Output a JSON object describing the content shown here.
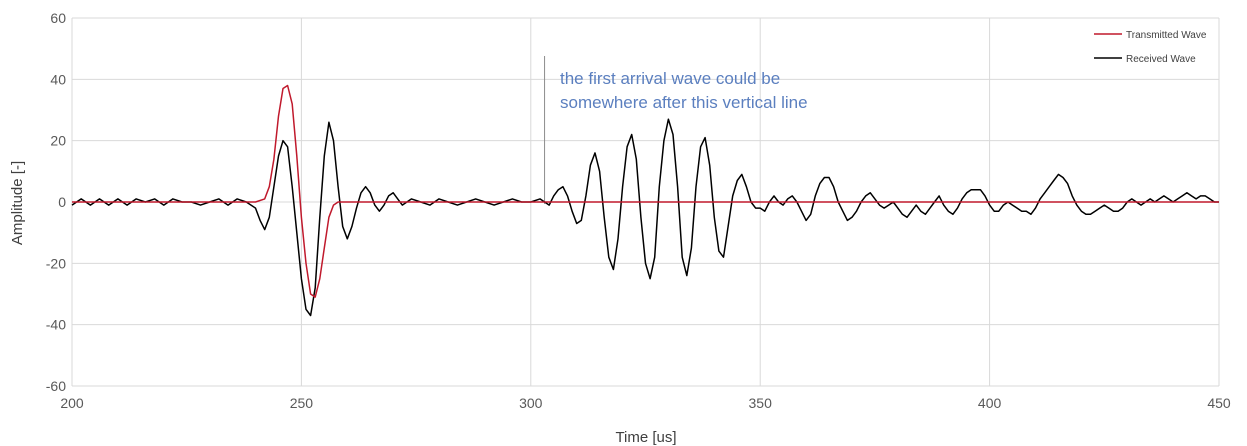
{
  "chart_data": {
    "type": "line",
    "xlabel": "Time [us]",
    "ylabel": "Amplitude [-]",
    "xlim": [
      200,
      450
    ],
    "ylim": [
      -60,
      60
    ],
    "xticks": [
      200,
      250,
      300,
      350,
      400,
      450
    ],
    "yticks": [
      -60,
      -40,
      -20,
      0,
      20,
      40,
      60
    ],
    "grid": true,
    "legend_position": "top-right",
    "annotation": {
      "lines": [
        "the first arrival wave could be",
        "somewhere after this vertical line"
      ],
      "marker_x": 303
    },
    "series": [
      {
        "name": "Transmitted Wave",
        "color": "#c0192c",
        "x": [
          200,
          240,
          242,
          243,
          244,
          245,
          246,
          247,
          248,
          249,
          250,
          251,
          252,
          253,
          254,
          255,
          256,
          257,
          258,
          260,
          450
        ],
        "y": [
          0,
          0,
          1,
          5,
          14,
          28,
          37,
          38,
          32,
          15,
          -5,
          -20,
          -30,
          -31,
          -25,
          -15,
          -5,
          -1,
          0,
          0,
          0
        ]
      },
      {
        "name": "Received Wave",
        "color": "#000000",
        "x": [
          200,
          202,
          204,
          206,
          208,
          210,
          212,
          214,
          216,
          218,
          220,
          222,
          224,
          226,
          228,
          230,
          232,
          234,
          236,
          238,
          240,
          241,
          242,
          243,
          244,
          245,
          246,
          247,
          248,
          249,
          250,
          251,
          252,
          253,
          254,
          255,
          256,
          257,
          258,
          259,
          260,
          261,
          262,
          263,
          264,
          265,
          266,
          267,
          268,
          269,
          270,
          271,
          272,
          273,
          274,
          276,
          278,
          280,
          282,
          284,
          286,
          288,
          290,
          292,
          294,
          296,
          298,
          300,
          302,
          304,
          305,
          306,
          307,
          308,
          309,
          310,
          311,
          312,
          313,
          314,
          315,
          316,
          317,
          318,
          319,
          320,
          321,
          322,
          323,
          324,
          325,
          326,
          327,
          328,
          329,
          330,
          331,
          332,
          333,
          334,
          335,
          336,
          337,
          338,
          339,
          340,
          341,
          342,
          343,
          344,
          345,
          346,
          347,
          348,
          349,
          350,
          351,
          352,
          353,
          354,
          355,
          356,
          357,
          358,
          359,
          360,
          361,
          362,
          363,
          364,
          365,
          366,
          367,
          368,
          369,
          370,
          371,
          372,
          373,
          374,
          375,
          376,
          377,
          378,
          379,
          380,
          381,
          382,
          383,
          384,
          385,
          386,
          387,
          388,
          389,
          390,
          391,
          392,
          393,
          394,
          395,
          396,
          397,
          398,
          399,
          400,
          401,
          402,
          403,
          404,
          405,
          406,
          407,
          408,
          409,
          410,
          411,
          412,
          413,
          414,
          415,
          416,
          417,
          418,
          419,
          420,
          421,
          422,
          423,
          424,
          425,
          426,
          427,
          428,
          429,
          430,
          431,
          432,
          433,
          434,
          435,
          436,
          437,
          438,
          439,
          440,
          441,
          442,
          443,
          444,
          445,
          446,
          447,
          448,
          449,
          450
        ],
        "y": [
          -1,
          1,
          -1,
          1,
          -1,
          1,
          -1,
          1,
          0,
          1,
          -1,
          1,
          0,
          0,
          -1,
          0,
          1,
          -1,
          1,
          0,
          -2,
          -6,
          -9,
          -5,
          5,
          15,
          20,
          18,
          5,
          -10,
          -25,
          -35,
          -37,
          -28,
          -5,
          15,
          26,
          20,
          5,
          -8,
          -12,
          -8,
          -2,
          3,
          5,
          3,
          -1,
          -3,
          -1,
          2,
          3,
          1,
          -1,
          0,
          1,
          0,
          -1,
          1,
          0,
          -1,
          0,
          1,
          0,
          -1,
          0,
          1,
          0,
          0,
          1,
          -1,
          2,
          4,
          5,
          2,
          -3,
          -7,
          -6,
          2,
          12,
          16,
          10,
          -5,
          -18,
          -22,
          -12,
          5,
          18,
          22,
          14,
          -5,
          -20,
          -25,
          -18,
          5,
          20,
          27,
          22,
          5,
          -18,
          -24,
          -15,
          5,
          18,
          21,
          12,
          -5,
          -16,
          -18,
          -8,
          2,
          7,
          9,
          5,
          0,
          -2,
          -2,
          -3,
          0,
          2,
          0,
          -1,
          1,
          2,
          0,
          -3,
          -6,
          -4,
          2,
          6,
          8,
          8,
          5,
          0,
          -3,
          -6,
          -5,
          -3,
          0,
          2,
          3,
          1,
          -1,
          -2,
          -1,
          0,
          -2,
          -4,
          -5,
          -3,
          -1,
          -3,
          -4,
          -2,
          0,
          2,
          -1,
          -3,
          -4,
          -2,
          1,
          3,
          4,
          4,
          4,
          2,
          -1,
          -3,
          -3,
          -1,
          0,
          -1,
          -2,
          -3,
          -3,
          -4,
          -2,
          1,
          3,
          5,
          7,
          9,
          8,
          6,
          2,
          -1,
          -3,
          -4,
          -4,
          -3,
          -2,
          -1,
          -2,
          -3,
          -3,
          -2,
          0,
          1,
          0,
          -1,
          0,
          1,
          0,
          1,
          2,
          1,
          0,
          1,
          2,
          3,
          2,
          1,
          2,
          2,
          1,
          0,
          0
        ]
      }
    ]
  }
}
